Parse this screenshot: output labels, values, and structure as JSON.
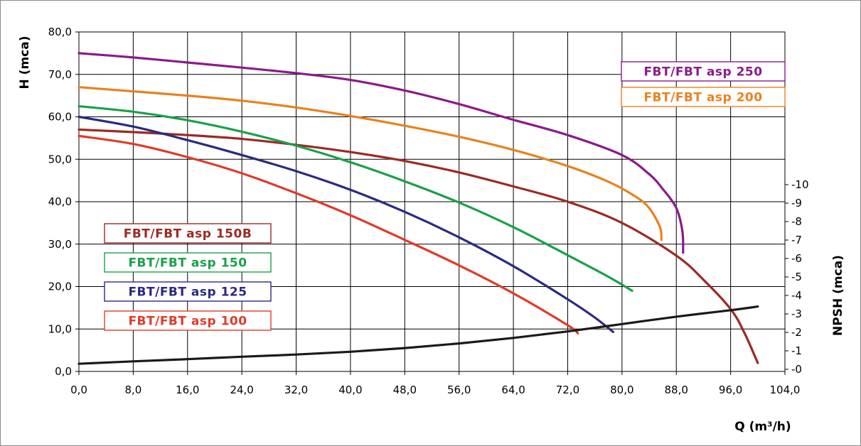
{
  "chart_data": {
    "type": "line",
    "xlabel": "Q (m³/h)",
    "ylabel": "H (mca)",
    "y2label": "NPSH (mca)",
    "xlim": [
      0,
      104
    ],
    "ylim": [
      0,
      80
    ],
    "y2lim": [
      0,
      10
    ],
    "grid": true,
    "x_ticks": [
      "0,0",
      "8,0",
      "16,0",
      "24,0",
      "32,0",
      "40,0",
      "48,0",
      "56,0",
      "64,0",
      "72,0",
      "80,0",
      "88,0",
      "96,0",
      "104,0"
    ],
    "y_ticks": [
      "0,0",
      "10,0",
      "20,0",
      "30,0",
      "40,0",
      "50,0",
      "60,0",
      "70,0",
      "80,0"
    ],
    "y2_ticks": [
      "-0",
      "-1",
      "-2",
      "-3",
      "-4",
      "-5",
      "-6",
      "-7",
      "-8",
      "-9",
      "-10"
    ],
    "series": [
      {
        "name": "FBT/FBT asp 250",
        "color": "#8b1a8b",
        "x": [
          0,
          8,
          16,
          24,
          32,
          40,
          48,
          56,
          64,
          72,
          80,
          84,
          86,
          88,
          88.9,
          89
        ],
        "y": [
          75,
          74,
          72.8,
          71.6,
          70.3,
          68.7,
          66.2,
          63,
          59.3,
          55.7,
          51,
          46.5,
          43,
          38.5,
          33,
          28
        ]
      },
      {
        "name": "FBT/FBT asp 200",
        "color": "#e8821e",
        "x": [
          0,
          8,
          16,
          24,
          32,
          40,
          48,
          56,
          64,
          72,
          78,
          82,
          84,
          85.6,
          85.8
        ],
        "y": [
          67,
          66,
          65,
          63.8,
          62.2,
          60.2,
          57.9,
          55.3,
          52.2,
          48.4,
          44.7,
          41.2,
          38.5,
          34,
          31
        ]
      },
      {
        "name": "FBT/FBT asp 150B",
        "color": "#9b2a24",
        "x": [
          0,
          8,
          16,
          24,
          32,
          40,
          48,
          56,
          64,
          72,
          80,
          88,
          92,
          96,
          98,
          100
        ],
        "y": [
          57,
          56.4,
          55.7,
          54.8,
          53.4,
          51.7,
          49.6,
          46.9,
          43.6,
          40,
          35,
          27.3,
          21.6,
          14.7,
          9.2,
          2
        ]
      },
      {
        "name": "FBT/FBT asp 150",
        "color": "#1aa04a",
        "x": [
          0,
          8,
          16,
          24,
          32,
          40,
          48,
          56,
          64,
          72,
          78,
          81.5
        ],
        "y": [
          62.5,
          61.2,
          59.2,
          56.5,
          53.2,
          49.3,
          44.8,
          39.8,
          34,
          27.4,
          22.3,
          19
        ]
      },
      {
        "name": "FBT/FBT asp 125",
        "color": "#2a2a82",
        "x": [
          0,
          8,
          16,
          24,
          32,
          40,
          48,
          56,
          64,
          72,
          76,
          78.7
        ],
        "y": [
          60,
          57.7,
          54.5,
          51,
          47.2,
          42.8,
          37.6,
          31.6,
          24.8,
          17,
          12.7,
          9.3
        ]
      },
      {
        "name": "FBT/FBT asp 100",
        "color": "#e03a2a",
        "x": [
          0,
          8,
          16,
          24,
          32,
          40,
          48,
          56,
          64,
          72,
          73.5
        ],
        "y": [
          55.5,
          53.6,
          50.5,
          46.7,
          42,
          36.8,
          31,
          25,
          18.4,
          10.9,
          9
        ]
      },
      {
        "name": "",
        "axis": "y2",
        "color": "#1a1a1a",
        "x": [
          0,
          8,
          16,
          24,
          32,
          40,
          48,
          56,
          64,
          72,
          80,
          88,
          96,
          100
        ],
        "y": [
          0.3,
          0.43,
          0.55,
          0.68,
          0.8,
          0.95,
          1.15,
          1.4,
          1.7,
          2.05,
          2.45,
          2.85,
          3.2,
          3.4
        ]
      }
    ],
    "legend": [
      {
        "text": "FBT/FBT asp 250",
        "color": "#8b1a8b"
      },
      {
        "text": "FBT/FBT asp 200",
        "color": "#e8821e"
      },
      {
        "text": "FBT/FBT asp 150B",
        "color": "#9b2a24"
      },
      {
        "text": "FBT/FBT asp 150",
        "color": "#1aa04a"
      },
      {
        "text": "FBT/FBT asp 125",
        "color": "#2a2a82"
      },
      {
        "text": "FBT/FBT asp 100",
        "color": "#e03a2a"
      }
    ]
  }
}
